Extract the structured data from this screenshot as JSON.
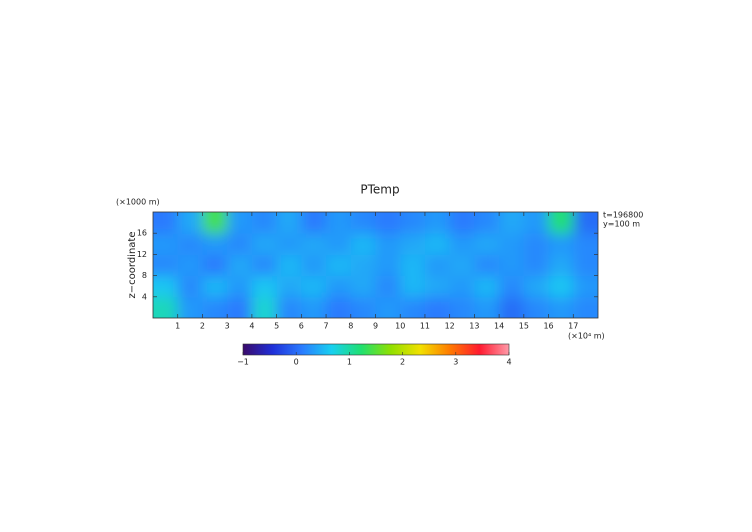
{
  "chart_data": {
    "type": "heatmap",
    "title": "PTemp",
    "xlabel": "(×10⁴ m)",
    "ylabel": "z−coordinate",
    "yunit": "(×1000 m)",
    "annotations": [
      "t=196800",
      "y=100 m"
    ],
    "xlim": [
      0,
      18
    ],
    "xticks": [
      1,
      2,
      3,
      4,
      5,
      6,
      7,
      8,
      9,
      10,
      11,
      12,
      13,
      14,
      15,
      16,
      17
    ],
    "ylim": [
      0,
      20
    ],
    "yticks": [
      4,
      8,
      12,
      16
    ],
    "z": [
      [
        0.9,
        0.3,
        0.2,
        0.1,
        0.8,
        0.2,
        0.3,
        0.1,
        0.2,
        0.3,
        0.2,
        0.1,
        0.2,
        0.3,
        0.0,
        0.2,
        0.3,
        0.2
      ],
      [
        0.6,
        0.2,
        0.5,
        0.3,
        0.6,
        0.4,
        0.5,
        0.3,
        0.4,
        0.2,
        0.5,
        0.4,
        0.3,
        0.5,
        0.2,
        0.4,
        0.6,
        0.3
      ],
      [
        0.2,
        0.3,
        0.1,
        0.4,
        0.2,
        0.5,
        0.3,
        0.5,
        0.4,
        0.3,
        0.5,
        0.3,
        0.4,
        0.2,
        0.3,
        0.2,
        0.4,
        0.2
      ],
      [
        0.3,
        0.2,
        0.3,
        0.2,
        0.4,
        0.3,
        0.4,
        0.3,
        0.5,
        0.3,
        0.4,
        0.5,
        0.3,
        0.4,
        0.3,
        0.2,
        0.3,
        0.2
      ],
      [
        0.1,
        0.4,
        1.4,
        0.3,
        0.2,
        0.4,
        0.1,
        0.3,
        0.2,
        0.1,
        0.2,
        0.3,
        0.1,
        0.2,
        0.4,
        0.3,
        1.2,
        0.0
      ]
    ],
    "clim": [
      -1,
      4
    ],
    "cticks": [
      {
        "value": -1,
        "label": "−1"
      },
      0,
      1,
      2,
      3,
      4
    ],
    "colormap": [
      "#3a0a6a",
      "#1f2fd8",
      "#2a7cff",
      "#18d0f0",
      "#20e070",
      "#90e000",
      "#f2e000",
      "#ff7a00",
      "#ff1a30",
      "#ff9aa8"
    ]
  }
}
